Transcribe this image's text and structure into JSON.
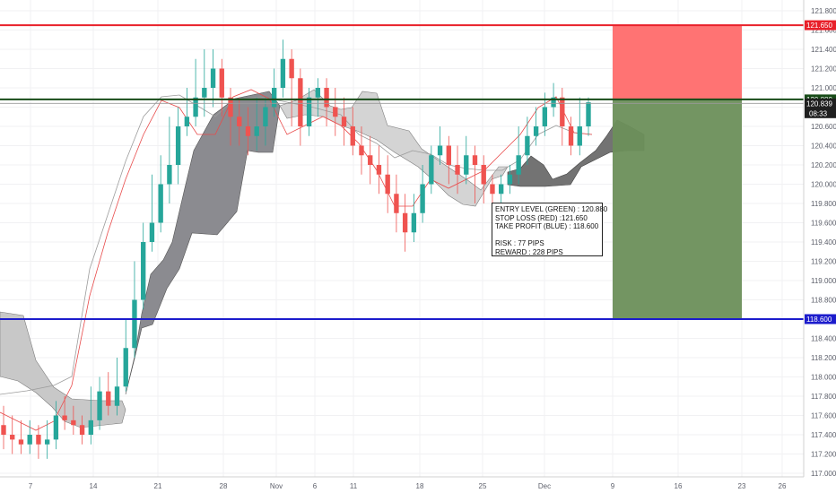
{
  "chart_data": {
    "type": "candlestick",
    "ylim": [
      117.0,
      121.8
    ],
    "y_ticks": [
      "121.800",
      "121.600",
      "121.400",
      "121.200",
      "121.000",
      "120.800",
      "120.600",
      "120.400",
      "120.200",
      "120.000",
      "119.800",
      "119.600",
      "119.400",
      "119.200",
      "119.000",
      "118.800",
      "118.600",
      "118.400",
      "118.200",
      "118.000",
      "117.800",
      "117.600",
      "117.400",
      "117.200",
      "117.000"
    ],
    "x_ticks": [
      "7",
      "14",
      "21",
      "28",
      "Nov",
      "6",
      "11",
      "18",
      "25",
      "Dec",
      "9",
      "16",
      "23",
      "26"
    ],
    "levels": {
      "stop_loss": {
        "value": 121.65,
        "label": "121.650",
        "color": "#e8202a"
      },
      "entry": {
        "value": 120.88,
        "label": "120.880",
        "color": "#174b18"
      },
      "take_profit": {
        "value": 118.6,
        "label": "118.600",
        "color": "#1c1ccc"
      },
      "last_price": {
        "value": 120.839,
        "label": "120.839",
        "countdown": "08:33"
      }
    },
    "position_zones": {
      "risk": {
        "from": 120.88,
        "to": 121.65,
        "color": "#ff6b6b"
      },
      "reward": {
        "from": 118.6,
        "to": 120.88,
        "color": "#6b8f5a"
      }
    },
    "candles": [
      [
        117.5,
        117.4,
        117.7,
        117.25
      ],
      [
        117.4,
        117.35,
        117.6,
        117.2
      ],
      [
        117.35,
        117.3,
        117.55,
        117.2
      ],
      [
        117.3,
        117.4,
        117.55,
        117.2
      ],
      [
        117.4,
        117.3,
        117.5,
        117.15
      ],
      [
        117.3,
        117.35,
        117.55,
        117.15
      ],
      [
        117.35,
        117.6,
        117.75,
        117.25
      ],
      [
        117.6,
        117.55,
        117.8,
        117.45
      ],
      [
        117.55,
        117.5,
        117.7,
        117.4
      ],
      [
        117.5,
        117.4,
        117.6,
        117.3
      ],
      [
        117.4,
        117.55,
        117.9,
        117.3
      ],
      [
        117.55,
        117.85,
        118.0,
        117.45
      ],
      [
        117.85,
        117.7,
        118.05,
        117.6
      ],
      [
        117.7,
        117.9,
        118.2,
        117.6
      ],
      [
        117.9,
        118.3,
        118.6,
        117.85
      ],
      [
        118.3,
        118.8,
        119.2,
        118.2
      ],
      [
        118.8,
        119.4,
        119.6,
        118.7
      ],
      [
        119.4,
        119.6,
        120.1,
        119.3
      ],
      [
        119.6,
        120.0,
        120.3,
        119.5
      ],
      [
        120.0,
        120.2,
        120.7,
        119.8
      ],
      [
        120.2,
        120.6,
        120.8,
        120.0
      ],
      [
        120.6,
        120.7,
        121.0,
        120.5
      ],
      [
        120.7,
        120.9,
        121.3,
        120.6
      ],
      [
        120.9,
        121.0,
        121.4,
        120.7
      ],
      [
        121.0,
        121.2,
        121.4,
        120.8
      ],
      [
        121.2,
        120.9,
        121.3,
        120.7
      ],
      [
        120.9,
        120.7,
        121.0,
        120.4
      ],
      [
        120.7,
        120.6,
        120.9,
        120.4
      ],
      [
        120.6,
        120.5,
        120.8,
        120.3
      ],
      [
        120.5,
        120.6,
        120.9,
        120.35
      ],
      [
        120.6,
        120.8,
        120.9,
        120.4
      ],
      [
        120.8,
        121.0,
        121.2,
        120.7
      ],
      [
        121.0,
        121.3,
        121.5,
        120.9
      ],
      [
        121.3,
        121.1,
        121.4,
        120.6
      ],
      [
        121.1,
        120.6,
        121.2,
        120.4
      ],
      [
        120.6,
        120.9,
        121.0,
        120.5
      ],
      [
        120.9,
        121.0,
        121.1,
        120.7
      ],
      [
        121.0,
        120.8,
        121.1,
        120.6
      ],
      [
        120.8,
        120.7,
        121.0,
        120.5
      ],
      [
        120.7,
        120.6,
        120.9,
        120.4
      ],
      [
        120.6,
        120.4,
        120.8,
        120.3
      ],
      [
        120.4,
        120.3,
        120.6,
        120.1
      ],
      [
        120.3,
        120.2,
        120.5,
        120.0
      ],
      [
        120.2,
        120.1,
        120.4,
        119.9
      ],
      [
        120.1,
        119.9,
        120.3,
        119.7
      ],
      [
        119.9,
        119.7,
        120.1,
        119.5
      ],
      [
        119.7,
        119.5,
        119.9,
        119.3
      ],
      [
        119.5,
        119.7,
        119.9,
        119.4
      ],
      [
        119.7,
        120.0,
        120.2,
        119.6
      ],
      [
        120.0,
        120.3,
        120.4,
        119.9
      ],
      [
        120.3,
        120.4,
        120.6,
        120.2
      ],
      [
        120.4,
        120.2,
        120.5,
        120.0
      ],
      [
        120.2,
        120.1,
        120.4,
        119.9
      ],
      [
        120.1,
        120.3,
        120.5,
        120.0
      ],
      [
        120.3,
        120.2,
        120.4,
        119.8
      ],
      [
        120.2,
        120.0,
        120.3,
        119.8
      ],
      [
        120.0,
        119.9,
        120.1,
        119.7
      ],
      [
        119.9,
        120.0,
        120.1,
        119.75
      ],
      [
        120.0,
        120.1,
        120.2,
        119.9
      ],
      [
        120.1,
        120.3,
        120.6,
        120.0
      ],
      [
        120.3,
        120.5,
        120.7,
        120.2
      ],
      [
        120.5,
        120.6,
        120.8,
        120.4
      ],
      [
        120.6,
        120.8,
        120.95,
        120.5
      ],
      [
        120.8,
        120.9,
        121.05,
        120.7
      ],
      [
        120.9,
        120.6,
        121.0,
        120.4
      ],
      [
        120.6,
        120.4,
        120.7,
        120.3
      ],
      [
        120.4,
        120.6,
        120.9,
        120.3
      ],
      [
        120.6,
        120.85,
        120.9,
        120.5
      ]
    ]
  },
  "annotation": {
    "entry": "ENTRY LEVEL (GREEN) : 120.880",
    "stop": "STOP LOSS (RED) :121.650",
    "target": "TAKE PROFIT (BLUE) : 118.600",
    "risk": "RISK : 77 PIPS",
    "reward": "REWARD : 228 PIPS"
  }
}
